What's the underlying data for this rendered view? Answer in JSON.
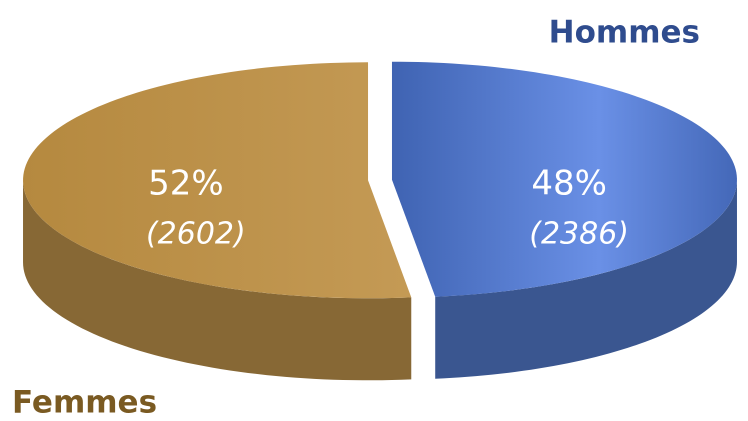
{
  "chart_data": {
    "type": "pie3d",
    "categories": [
      "Femmes",
      "Hommes"
    ],
    "values": [
      52,
      48
    ],
    "value_labels": [
      "52%",
      "48%"
    ],
    "counts": [
      2602,
      2386
    ],
    "count_labels": [
      "(2602)",
      "(2386)"
    ],
    "colors": [
      "#bb914a",
      "#5077c8"
    ],
    "label_colors": [
      "#7a5a22",
      "#2f4c8e"
    ]
  }
}
